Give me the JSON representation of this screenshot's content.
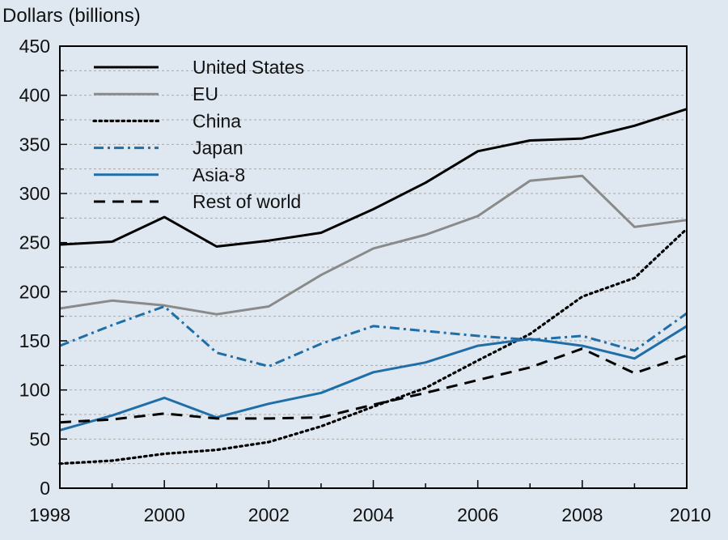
{
  "chart_data": {
    "type": "line",
    "ylabel": "Dollars (billions)",
    "xlabel": "",
    "xlim": [
      1998,
      2010
    ],
    "ylim": [
      0,
      450
    ],
    "x_ticks": [
      1998,
      2000,
      2002,
      2004,
      2006,
      2008,
      2010
    ],
    "y_ticks": [
      0,
      50,
      100,
      150,
      200,
      250,
      300,
      350,
      400,
      450
    ],
    "grid": "dotted horizontal every 25",
    "legend_position": "top-left",
    "x": [
      1998,
      1999,
      2000,
      2001,
      2002,
      2003,
      2004,
      2005,
      2006,
      2007,
      2008,
      2009,
      2010
    ],
    "series": [
      {
        "name": "United States",
        "color": "#000000",
        "style": "solid",
        "values": [
          248,
          251,
          276,
          246,
          252,
          260,
          284,
          311,
          343,
          354,
          356,
          369,
          386
        ]
      },
      {
        "name": "EU",
        "color": "#8a8a8a",
        "style": "solid",
        "values": [
          183,
          191,
          186,
          177,
          185,
          217,
          244,
          258,
          277,
          313,
          318,
          266,
          273
        ]
      },
      {
        "name": "China",
        "color": "#000000",
        "style": "dotted",
        "values": [
          25,
          28,
          35,
          39,
          47,
          63,
          83,
          102,
          130,
          157,
          195,
          214,
          264
        ]
      },
      {
        "name": "Japan",
        "color": "#1f6ea8",
        "style": "dashdot",
        "values": [
          145,
          166,
          185,
          138,
          124,
          147,
          165,
          160,
          155,
          151,
          155,
          140,
          178
        ]
      },
      {
        "name": "Asia-8",
        "color": "#1f6ea8",
        "style": "solid",
        "values": [
          59,
          74,
          92,
          72,
          86,
          97,
          118,
          128,
          145,
          152,
          145,
          132,
          165
        ]
      },
      {
        "name": "Rest of world",
        "color": "#000000",
        "style": "dashed",
        "values": [
          67,
          70,
          76,
          71,
          71,
          72,
          85,
          97,
          110,
          123,
          142,
          117,
          135
        ]
      }
    ]
  }
}
